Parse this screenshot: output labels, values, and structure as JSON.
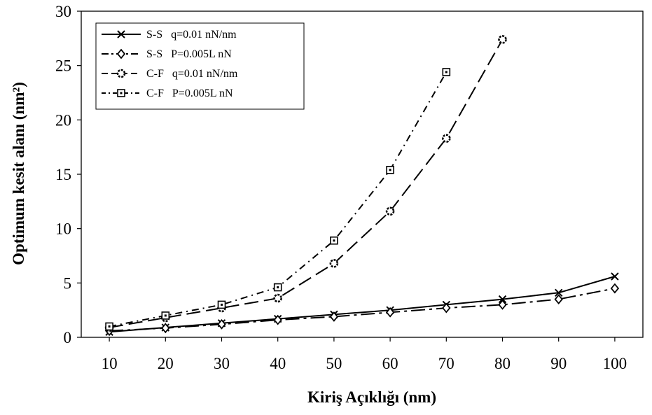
{
  "chart_data": {
    "type": "line",
    "xlabel": "Kiriş Açıklığı (nm)",
    "ylabel": "Optimum kesit alanı (nm²)",
    "x": [
      10,
      20,
      30,
      40,
      50,
      60,
      70,
      80,
      90,
      100
    ],
    "x_tick_labels": [
      "10",
      "20",
      "30",
      "40",
      "50",
      "60",
      "70",
      "80",
      "90",
      "100"
    ],
    "ylim": [
      0,
      30
    ],
    "y_ticks": [
      0,
      5,
      10,
      15,
      20,
      25,
      30
    ],
    "y_tick_labels": [
      "0",
      "5",
      "10",
      "15",
      "20",
      "25",
      "30"
    ],
    "grid": false,
    "legend_position": "top-left",
    "series": [
      {
        "name": "S-S   q=0.01 nN/nm",
        "marker": "x",
        "dash": "solid",
        "x": [
          10,
          20,
          30,
          40,
          50,
          60,
          70,
          80,
          90,
          100
        ],
        "values": [
          0.5,
          0.9,
          1.3,
          1.7,
          2.1,
          2.5,
          3.0,
          3.5,
          4.1,
          5.6
        ]
      },
      {
        "name": "S-S   P=0.005L nN",
        "marker": "diamond",
        "dash": "long-dash-dot",
        "x": [
          10,
          20,
          30,
          40,
          50,
          60,
          70,
          80,
          90,
          100
        ],
        "values": [
          0.6,
          0.85,
          1.2,
          1.6,
          1.9,
          2.3,
          2.7,
          3.0,
          3.5,
          4.5
        ]
      },
      {
        "name": "C-F   q=0.01 nN/nm",
        "marker": "circle",
        "dash": "long-dash",
        "x": [
          10,
          20,
          30,
          40,
          50,
          60,
          70,
          80
        ],
        "values": [
          0.9,
          1.8,
          2.7,
          3.6,
          6.8,
          11.6,
          18.3,
          27.4
        ]
      },
      {
        "name": "C-F   P=0.005L nN",
        "marker": "square",
        "dash": "dash-dot",
        "x": [
          10,
          20,
          30,
          40,
          50,
          60,
          70
        ],
        "values": [
          1.0,
          2.0,
          3.0,
          4.6,
          8.9,
          15.4,
          24.4
        ]
      }
    ]
  }
}
